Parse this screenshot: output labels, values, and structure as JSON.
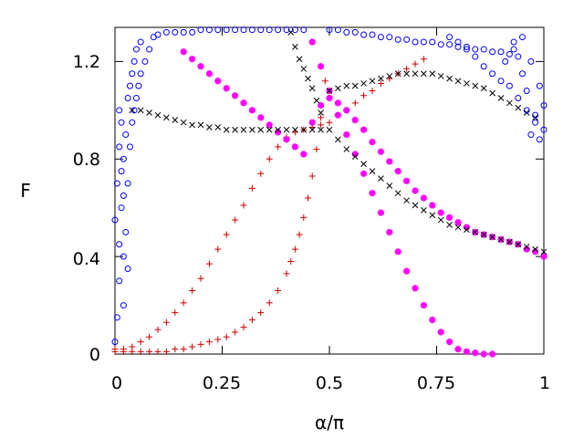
{
  "chart_data": {
    "type": "scatter",
    "title": "",
    "xlabel": "α/π",
    "ylabel": "F",
    "xlim": [
      0,
      1
    ],
    "ylim": [
      0,
      1.34
    ],
    "xticks": [
      0,
      0.25,
      0.5,
      0.75,
      1
    ],
    "xtick_labels": [
      "0",
      "0.25",
      "0.5",
      "0.75",
      "1"
    ],
    "yticks": [
      0,
      0.4,
      0.8,
      1.2
    ],
    "ytick_labels": [
      "0",
      "0.4",
      "0.8",
      "1.2"
    ],
    "grid": false,
    "legend": "none",
    "series": [
      {
        "name": "red-plus-lower",
        "marker": "plus",
        "color": "#cc0000",
        "x": [
          0.0,
          0.02,
          0.04,
          0.06,
          0.08,
          0.1,
          0.12,
          0.14,
          0.16,
          0.18,
          0.2,
          0.22,
          0.24,
          0.26,
          0.28,
          0.3,
          0.32,
          0.34,
          0.36,
          0.38,
          0.4,
          0.41,
          0.42,
          0.43,
          0.44,
          0.45,
          0.46,
          0.47,
          0.48,
          0.49
        ],
        "y": [
          0.01,
          0.01,
          0.01,
          0.01,
          0.01,
          0.01,
          0.01,
          0.02,
          0.02,
          0.03,
          0.04,
          0.05,
          0.06,
          0.07,
          0.09,
          0.11,
          0.14,
          0.17,
          0.21,
          0.26,
          0.33,
          0.38,
          0.43,
          0.49,
          0.56,
          0.64,
          0.73,
          0.84,
          0.97,
          1.12
        ]
      },
      {
        "name": "red-plus-upper",
        "marker": "plus",
        "color": "#cc0000",
        "x": [
          0.0,
          0.02,
          0.04,
          0.06,
          0.08,
          0.1,
          0.12,
          0.14,
          0.16,
          0.18,
          0.2,
          0.22,
          0.24,
          0.26,
          0.28,
          0.3,
          0.32,
          0.34,
          0.36,
          0.38,
          0.4,
          0.42,
          0.44,
          0.46,
          0.48,
          0.5,
          0.52,
          0.54,
          0.56,
          0.58,
          0.6,
          0.62,
          0.64,
          0.66,
          0.68,
          0.7,
          0.72
        ],
        "y": [
          0.02,
          0.02,
          0.03,
          0.05,
          0.07,
          0.1,
          0.13,
          0.17,
          0.21,
          0.26,
          0.31,
          0.37,
          0.43,
          0.49,
          0.55,
          0.61,
          0.68,
          0.74,
          0.8,
          0.85,
          0.89,
          0.91,
          0.92,
          0.93,
          0.94,
          0.95,
          0.98,
          1.0,
          1.03,
          1.06,
          1.08,
          1.11,
          1.13,
          1.15,
          1.17,
          1.19,
          1.21
        ]
      },
      {
        "name": "magenta-dots-lower",
        "marker": "filled-circle",
        "color": "#ff00ff",
        "x": [
          0.46,
          0.48,
          0.5,
          0.52,
          0.54,
          0.56,
          0.58,
          0.6,
          0.62,
          0.64,
          0.66,
          0.68,
          0.7,
          0.72,
          0.74,
          0.76,
          0.78,
          0.8,
          0.82,
          0.84,
          0.86,
          0.88
        ],
        "y": [
          1.28,
          1.18,
          1.08,
          0.98,
          0.9,
          0.82,
          0.74,
          0.66,
          0.58,
          0.5,
          0.42,
          0.34,
          0.27,
          0.2,
          0.14,
          0.09,
          0.05,
          0.02,
          0.01,
          0.005,
          0.0,
          0.0
        ]
      },
      {
        "name": "magenta-dots-upper",
        "marker": "filled-circle",
        "color": "#ff00ff",
        "x": [
          0.16,
          0.18,
          0.2,
          0.22,
          0.24,
          0.26,
          0.28,
          0.3,
          0.32,
          0.34,
          0.36,
          0.38,
          0.4,
          0.42,
          0.44,
          0.46,
          0.48,
          0.5,
          0.52,
          0.54,
          0.56,
          0.58,
          0.6,
          0.62,
          0.64,
          0.66,
          0.68,
          0.7,
          0.72,
          0.74,
          0.76,
          0.78,
          0.8,
          0.82,
          0.84,
          0.86,
          0.88,
          0.9,
          0.92,
          0.94,
          0.96,
          0.98,
          1.0
        ],
        "y": [
          1.24,
          1.21,
          1.18,
          1.15,
          1.12,
          1.09,
          1.06,
          1.03,
          1.0,
          0.97,
          0.94,
          0.91,
          0.88,
          0.85,
          0.82,
          0.95,
          1.02,
          1.05,
          1.03,
          1.0,
          0.96,
          0.92,
          0.87,
          0.83,
          0.79,
          0.75,
          0.71,
          0.67,
          0.64,
          0.61,
          0.58,
          0.56,
          0.54,
          0.52,
          0.5,
          0.49,
          0.48,
          0.47,
          0.46,
          0.45,
          0.43,
          0.42,
          0.4
        ]
      },
      {
        "name": "black-x-upper",
        "marker": "cross",
        "color": "#000000",
        "x": [
          0.04,
          0.06,
          0.08,
          0.1,
          0.12,
          0.14,
          0.16,
          0.18,
          0.2,
          0.22,
          0.24,
          0.26,
          0.28,
          0.3,
          0.32,
          0.34,
          0.36,
          0.38,
          0.4,
          0.42,
          0.44,
          0.46,
          0.48,
          0.5,
          0.52,
          0.54,
          0.56,
          0.58,
          0.6,
          0.62,
          0.64,
          0.66,
          0.68,
          0.7,
          0.72,
          0.74,
          0.76,
          0.78,
          0.8,
          0.82,
          0.84,
          0.86,
          0.88,
          0.9,
          0.92,
          0.94,
          0.96,
          0.98
        ],
        "y": [
          1.0,
          1.0,
          0.99,
          0.98,
          0.97,
          0.96,
          0.95,
          0.94,
          0.94,
          0.93,
          0.93,
          0.92,
          0.92,
          0.92,
          0.92,
          0.92,
          0.92,
          0.92,
          0.92,
          0.92,
          0.92,
          0.92,
          0.92,
          1.08,
          1.09,
          1.1,
          1.1,
          1.11,
          1.12,
          1.13,
          1.14,
          1.15,
          1.15,
          1.15,
          1.15,
          1.15,
          1.14,
          1.13,
          1.12,
          1.11,
          1.1,
          1.09,
          1.07,
          1.05,
          1.03,
          1.01,
          0.99,
          0.97
        ]
      },
      {
        "name": "black-x-lower",
        "marker": "cross",
        "color": "#000000",
        "x": [
          0.41,
          0.42,
          0.43,
          0.44,
          0.45,
          0.46,
          0.47,
          0.48,
          0.5,
          0.52,
          0.54,
          0.56,
          0.58,
          0.6,
          0.62,
          0.64,
          0.66,
          0.68,
          0.7,
          0.72,
          0.74,
          0.76,
          0.78,
          0.8,
          0.82,
          0.84,
          0.86,
          0.88,
          0.9,
          0.92,
          0.94,
          0.96,
          0.98,
          1.0
        ],
        "y": [
          1.32,
          1.26,
          1.21,
          1.17,
          1.13,
          1.09,
          1.04,
          0.99,
          0.92,
          0.88,
          0.84,
          0.81,
          0.78,
          0.75,
          0.72,
          0.69,
          0.66,
          0.63,
          0.61,
          0.59,
          0.57,
          0.55,
          0.53,
          0.52,
          0.51,
          0.5,
          0.49,
          0.48,
          0.47,
          0.46,
          0.45,
          0.44,
          0.43,
          0.42
        ]
      },
      {
        "name": "blue-circles-left-column",
        "marker": "open-circle",
        "color": "#0000ff",
        "x": [
          0.0,
          0.0,
          0.005,
          0.005,
          0.01,
          0.01,
          0.01,
          0.01,
          0.015,
          0.015,
          0.015,
          0.02,
          0.02,
          0.02,
          0.02,
          0.025,
          0.025,
          0.03,
          0.03,
          0.03,
          0.035,
          0.035,
          0.04,
          0.04,
          0.045,
          0.045,
          0.05,
          0.05,
          0.055,
          0.06,
          0.06,
          0.07,
          0.08,
          0.09
        ],
        "y": [
          0.05,
          0.55,
          0.15,
          0.7,
          0.3,
          0.45,
          0.85,
          1.0,
          0.6,
          0.75,
          0.95,
          0.2,
          0.4,
          0.65,
          0.8,
          0.5,
          0.9,
          0.35,
          0.7,
          1.05,
          0.85,
          1.1,
          0.95,
          1.15,
          1.0,
          1.2,
          1.05,
          1.25,
          1.1,
          1.15,
          1.28,
          1.2,
          1.25,
          1.3
        ]
      },
      {
        "name": "blue-circles-top-band",
        "marker": "open-circle",
        "color": "#0000ff",
        "x": [
          0.1,
          0.12,
          0.14,
          0.16,
          0.18,
          0.2,
          0.22,
          0.24,
          0.26,
          0.28,
          0.3,
          0.32,
          0.34,
          0.36,
          0.38,
          0.4,
          0.42,
          0.44,
          0.5,
          0.52,
          0.54,
          0.56,
          0.58,
          0.6,
          0.62,
          0.64,
          0.66,
          0.68,
          0.7,
          0.72,
          0.74,
          0.76,
          0.78,
          0.8,
          0.82,
          0.84,
          0.86,
          0.88,
          0.9,
          0.92
        ],
        "y": [
          1.31,
          1.32,
          1.32,
          1.32,
          1.32,
          1.33,
          1.33,
          1.33,
          1.33,
          1.33,
          1.33,
          1.33,
          1.33,
          1.33,
          1.33,
          1.33,
          1.33,
          1.33,
          1.33,
          1.33,
          1.32,
          1.32,
          1.31,
          1.31,
          1.3,
          1.3,
          1.29,
          1.29,
          1.28,
          1.28,
          1.28,
          1.27,
          1.27,
          1.26,
          1.26,
          1.25,
          1.25,
          1.24,
          1.24,
          1.23
        ]
      },
      {
        "name": "blue-circles-right-cluster",
        "marker": "open-circle",
        "color": "#0000ff",
        "x": [
          0.78,
          0.8,
          0.82,
          0.84,
          0.86,
          0.88,
          0.9,
          0.91,
          0.92,
          0.93,
          0.94,
          0.95,
          0.96,
          0.97,
          0.98,
          0.99,
          1.0,
          1.0,
          0.99,
          0.98,
          0.97,
          0.96,
          0.95,
          0.94,
          0.93
        ],
        "y": [
          1.3,
          1.28,
          1.25,
          1.22,
          1.18,
          1.15,
          1.12,
          1.2,
          1.1,
          1.25,
          1.05,
          1.3,
          1.0,
          1.2,
          0.95,
          1.1,
          0.92,
          1.02,
          0.88,
          0.98,
          0.9,
          1.08,
          1.15,
          1.22,
          1.28
        ]
      }
    ]
  }
}
